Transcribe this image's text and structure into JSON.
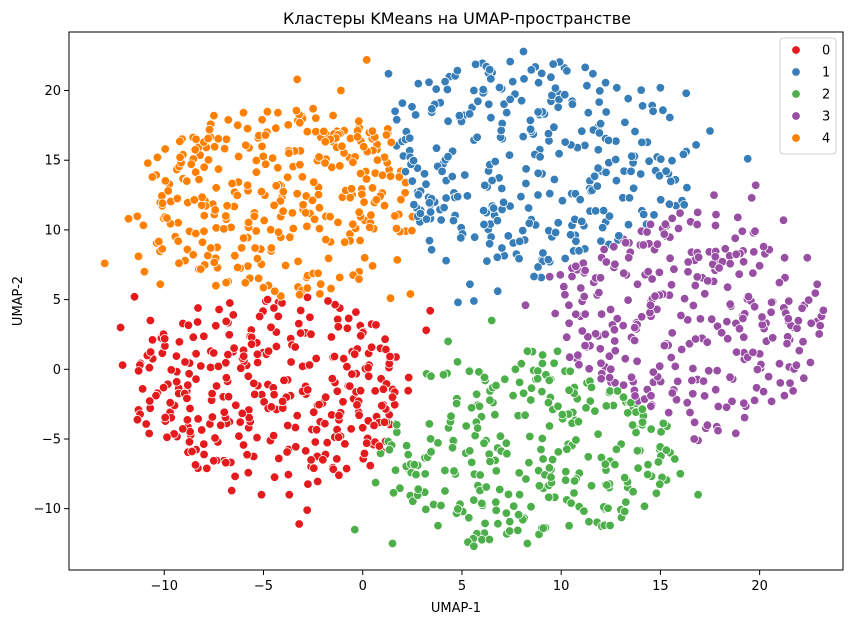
{
  "chart_data": {
    "type": "scatter",
    "title": "Кластеры KMeans на UMAP-пространстве",
    "xlabel": "UMAP-1",
    "ylabel": "UMAP-2",
    "xlim": [
      -14.8,
      24.2
    ],
    "ylim": [
      -14.4,
      24.2
    ],
    "xticks": [
      -10,
      -5,
      0,
      5,
      10,
      15,
      20
    ],
    "yticks": [
      -10,
      -5,
      0,
      5,
      10,
      15,
      20
    ],
    "grid": false,
    "legend_position": "top-right",
    "series": [
      {
        "name": "0",
        "color": "#e41a1c",
        "region": {
          "cx": -4.6,
          "cy": -1.5,
          "rx": 7.2,
          "ry": 7.0,
          "n": 300
        },
        "points": [
          [
            -13,
            7.6
          ],
          [
            -12.2,
            3.0
          ],
          [
            -12.1,
            0.3
          ],
          [
            -11.5,
            5.2
          ],
          [
            -10.7,
            3.5
          ],
          [
            -9.7,
            -2.4
          ],
          [
            -8.6,
            -5.9
          ],
          [
            -8.4,
            -0.7
          ],
          [
            -7.4,
            6.0
          ],
          [
            -6.9,
            -6.7
          ],
          [
            -6.6,
            -8.7
          ],
          [
            -5.6,
            1.8
          ],
          [
            -5.1,
            -9.0
          ],
          [
            -4.6,
            -2.7
          ],
          [
            -3.4,
            1.6
          ],
          [
            -3.7,
            -9.0
          ],
          [
            -2.6,
            -6.5
          ],
          [
            -1.6,
            5.8
          ],
          [
            -1.2,
            -7.6
          ],
          [
            -0.1,
            2.4
          ],
          [
            0.0,
            -4.2
          ],
          [
            0.3,
            -0.5
          ],
          [
            1.4,
            5.1
          ],
          [
            2.4,
            5.4
          ],
          [
            3.4,
            4.2
          ],
          [
            4.3,
            2.0
          ]
        ]
      },
      {
        "name": "1",
        "color": "#377eb8",
        "region": {
          "cx": 8.5,
          "cy": 14.5,
          "rx": 8.0,
          "ry": 8.0,
          "n": 300
        },
        "points": [
          [
            2.8,
            20.5
          ],
          [
            3.7,
            20.1
          ],
          [
            4.3,
            17.8
          ],
          [
            5.6,
            20.0
          ],
          [
            6.4,
            21.5
          ],
          [
            8.1,
            22.8
          ],
          [
            9.6,
            21.9
          ],
          [
            10.2,
            16.3
          ],
          [
            11.6,
            21.2
          ],
          [
            12.8,
            20.2
          ],
          [
            14.1,
            18.9
          ],
          [
            15.0,
            20.2
          ],
          [
            16.3,
            19.8
          ],
          [
            16.8,
            16.1
          ],
          [
            17.5,
            17.1
          ],
          [
            19.4,
            15.1
          ],
          [
            19.8,
            13.2
          ],
          [
            17.7,
            12.5
          ],
          [
            16.2,
            11.8
          ],
          [
            14.3,
            10.4
          ],
          [
            12.0,
            9.2
          ],
          [
            10.9,
            8.5
          ],
          [
            5.4,
            6.1
          ],
          [
            5.6,
            4.9
          ],
          [
            4.1,
            11.6
          ],
          [
            4.0,
            14.2
          ]
        ]
      },
      {
        "name": "2",
        "color": "#4daf4a",
        "region": {
          "cx": 8.0,
          "cy": -5.5,
          "rx": 8.0,
          "ry": 7.0,
          "n": 280
        },
        "points": [
          [
            -3.2,
            -11.1
          ],
          [
            -2.8,
            -10.1
          ],
          [
            -0.4,
            -11.5
          ],
          [
            1.5,
            -12.5
          ],
          [
            2.8,
            -8.6
          ],
          [
            4.6,
            -7.3
          ],
          [
            5.3,
            -12.4
          ],
          [
            5.6,
            -12.7
          ],
          [
            7.4,
            -11.6
          ],
          [
            8.3,
            -12.5
          ],
          [
            9.1,
            -11.4
          ],
          [
            10.5,
            -9.6
          ],
          [
            12.3,
            -8.3
          ],
          [
            13.2,
            -10.2
          ],
          [
            14.8,
            -8.9
          ],
          [
            16.0,
            -7.5
          ],
          [
            16.9,
            -9.0
          ],
          [
            16.9,
            -5.1
          ],
          [
            15.3,
            -5.8
          ],
          [
            13.6,
            -4.0
          ],
          [
            11.7,
            -3.0
          ],
          [
            10.4,
            -1.5
          ],
          [
            8.3,
            1.3
          ],
          [
            6.5,
            3.5
          ],
          [
            4.8,
            4.8
          ],
          [
            3.2,
            2.8
          ],
          [
            1.5,
            -2.0
          ],
          [
            0.2,
            -5.3
          ]
        ]
      },
      {
        "name": "3",
        "color": "#984ea3",
        "region": {
          "cx": 16.5,
          "cy": 3.5,
          "rx": 6.8,
          "ry": 8.0,
          "n": 280
        },
        "points": [
          [
            6.8,
            5.6
          ],
          [
            8.2,
            4.6
          ],
          [
            9.7,
            4.0
          ],
          [
            10.4,
            3.3
          ],
          [
            11.9,
            5.5
          ],
          [
            13.4,
            8.0
          ],
          [
            14.5,
            4.6
          ],
          [
            15.2,
            1.7
          ],
          [
            16.4,
            7.7
          ],
          [
            17.8,
            11.1
          ],
          [
            18.9,
            10.9
          ],
          [
            19.6,
            12.3
          ],
          [
            20.2,
            8.8
          ],
          [
            21.2,
            10.7
          ],
          [
            22.4,
            8.0
          ],
          [
            22.9,
            6.1
          ],
          [
            22.6,
            3.3
          ],
          [
            20.6,
            4.8
          ],
          [
            21.0,
            0.4
          ],
          [
            19.2,
            2.3
          ],
          [
            20.2,
            -1.6
          ],
          [
            20.6,
            -2.3
          ],
          [
            18.8,
            -4.6
          ],
          [
            17.9,
            -4.4
          ],
          [
            16.7,
            -5.0
          ],
          [
            15.6,
            -1.7
          ],
          [
            14.1,
            -3.8
          ],
          [
            12.5,
            0.0
          ],
          [
            11.2,
            1.7
          ],
          [
            9.4,
            -0.8
          ]
        ]
      },
      {
        "name": "4",
        "color": "#ff7f00",
        "region": {
          "cx": -4.0,
          "cy": 12.0,
          "rx": 7.5,
          "ry": 6.8,
          "n": 300
        },
        "points": [
          [
            -11.8,
            10.8
          ],
          [
            -11.0,
            7.0
          ],
          [
            -10.6,
            13.8
          ],
          [
            -9.8,
            12.8
          ],
          [
            -9.3,
            9.2
          ],
          [
            -9.2,
            15.2
          ],
          [
            -8.4,
            16.5
          ],
          [
            -7.5,
            18.2
          ],
          [
            -6.9,
            11.0
          ],
          [
            -5.8,
            13.2
          ],
          [
            -4.9,
            16.8
          ],
          [
            -3.3,
            20.8
          ],
          [
            -2.5,
            18.7
          ],
          [
            -1.1,
            20.0
          ],
          [
            -0.2,
            17.8
          ],
          [
            0.2,
            22.2
          ],
          [
            1.3,
            21.2
          ],
          [
            2.0,
            19.1
          ],
          [
            2.5,
            13.5
          ],
          [
            1.7,
            10.1
          ],
          [
            0.1,
            8.0
          ],
          [
            -0.5,
            10.4
          ],
          [
            -1.9,
            14.8
          ],
          [
            -3.3,
            12.6
          ],
          [
            -4.6,
            8.7
          ],
          [
            -6.3,
            7.3
          ],
          [
            -8.0,
            9.9
          ],
          [
            -10.2,
            6.1
          ],
          [
            -11.3,
            8.1
          ]
        ]
      }
    ]
  }
}
